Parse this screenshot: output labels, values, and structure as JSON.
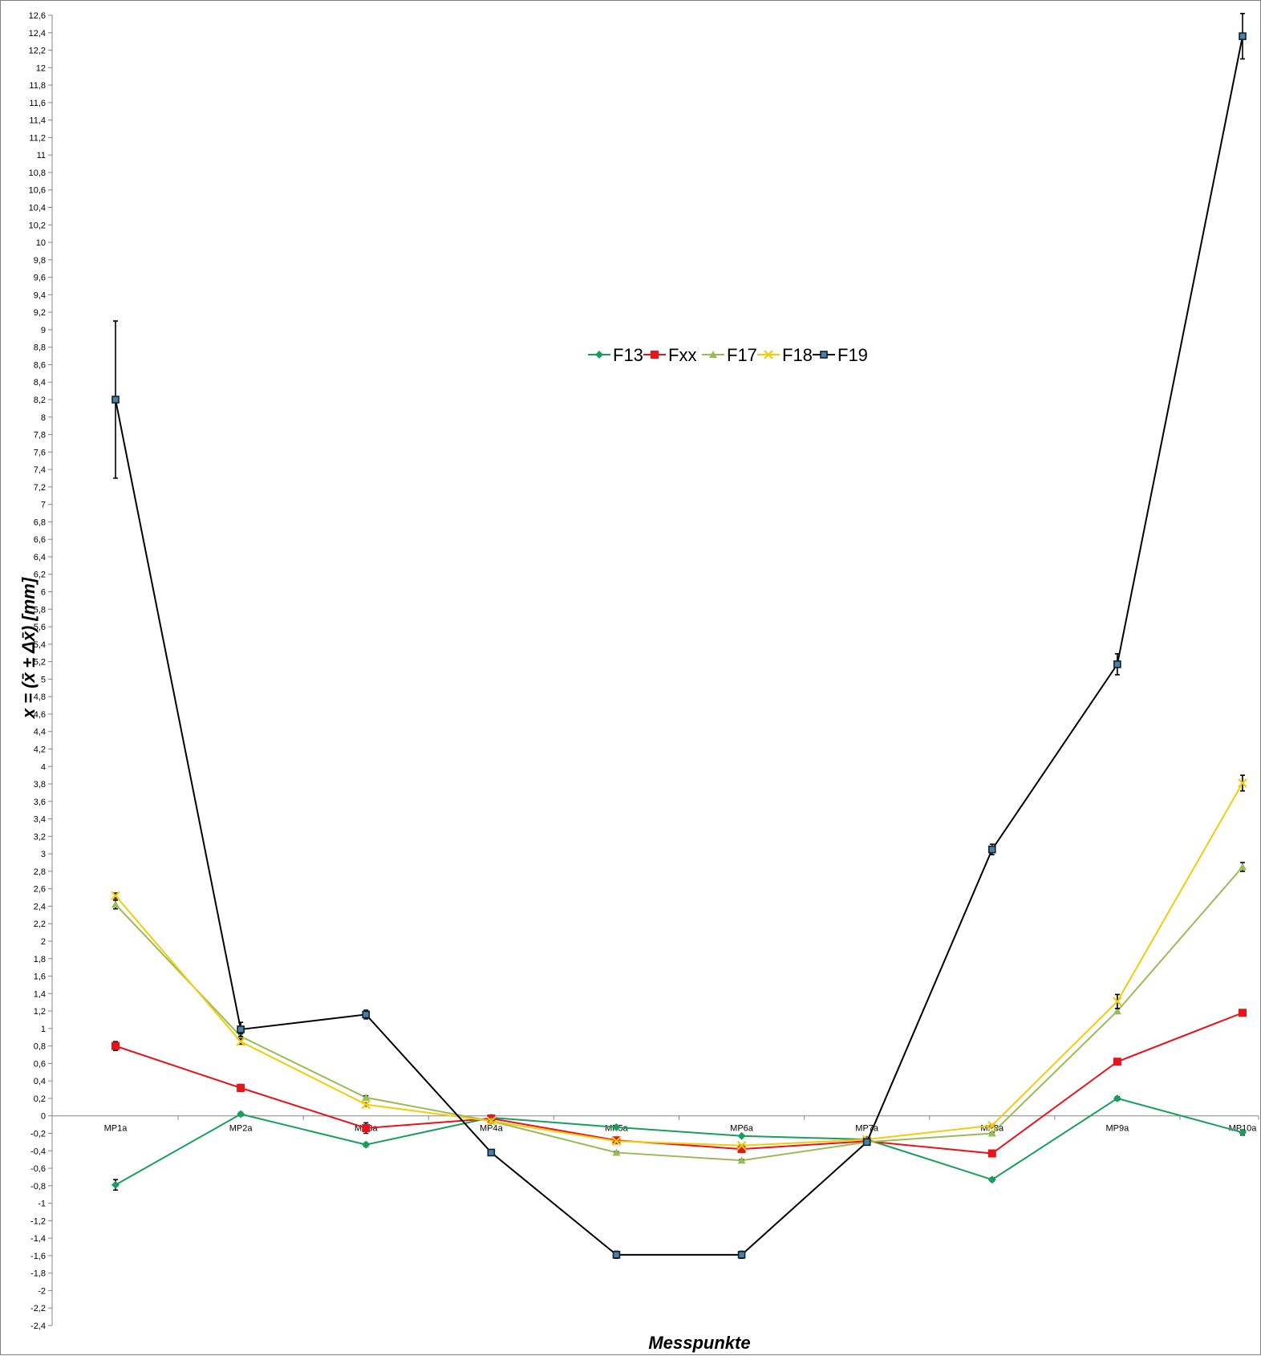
{
  "chart_data": {
    "type": "line",
    "title": "",
    "xlabel": "Messpunkte",
    "ylabel": "x = (x̄ ± Δx̄) [mm]",
    "ylim": [
      -2.4,
      12.6
    ],
    "ytick_step": 0.2,
    "grid": false,
    "legend_position": "top-center",
    "categories": [
      "MP1a",
      "MP2a",
      "MP3a",
      "MP4a",
      "MP5a",
      "MP6a",
      "MP7a",
      "MP8a",
      "MP9a",
      "MP10a"
    ],
    "series": [
      {
        "name": "F13",
        "color": "#1a9e5c",
        "marker": "diamond",
        "values": [
          -0.79,
          0.02,
          -0.33,
          -0.02,
          -0.13,
          -0.23,
          -0.27,
          -0.73,
          0.2,
          -0.19
        ],
        "errors": [
          0.06,
          0.02,
          0.02,
          0.01,
          0.01,
          0.01,
          0.01,
          0.02,
          0.02,
          0.03
        ]
      },
      {
        "name": "Fxx",
        "color": "#e8141c",
        "marker": "square",
        "values": [
          0.8,
          0.32,
          -0.14,
          -0.03,
          -0.28,
          -0.38,
          -0.29,
          -0.43,
          0.62,
          1.18
        ],
        "errors": [
          0.05,
          0.04,
          0.06,
          0.01,
          0.01,
          0.01,
          0.01,
          0.01,
          0.02,
          0.03
        ]
      },
      {
        "name": "F17",
        "color": "#9bbb59",
        "marker": "triangle",
        "values": [
          2.42,
          0.91,
          0.21,
          -0.06,
          -0.42,
          -0.51,
          -0.3,
          -0.2,
          1.2,
          2.85
        ],
        "errors": [
          0.05,
          0.03,
          0.02,
          0.01,
          0.01,
          0.01,
          0.01,
          0.01,
          0.03,
          0.05
        ]
      },
      {
        "name": "F18",
        "color": "#f2cc0c",
        "marker": "x",
        "values": [
          2.52,
          0.85,
          0.13,
          -0.06,
          -0.29,
          -0.34,
          -0.27,
          -0.11,
          1.31,
          3.81
        ],
        "errors": [
          0.03,
          0.03,
          0.02,
          0.01,
          0.01,
          0.01,
          0.01,
          0.01,
          0.08,
          0.09
        ]
      },
      {
        "name": "F19",
        "color": "#000000",
        "marker": "square-small",
        "values": [
          8.2,
          0.99,
          1.16,
          -0.42,
          -1.59,
          -1.59,
          -0.3,
          3.05,
          5.17,
          12.36
        ],
        "errors": [
          0.9,
          0.08,
          0.05,
          0.01,
          0.04,
          0.04,
          0.02,
          0.06,
          0.12,
          0.26
        ]
      }
    ]
  }
}
